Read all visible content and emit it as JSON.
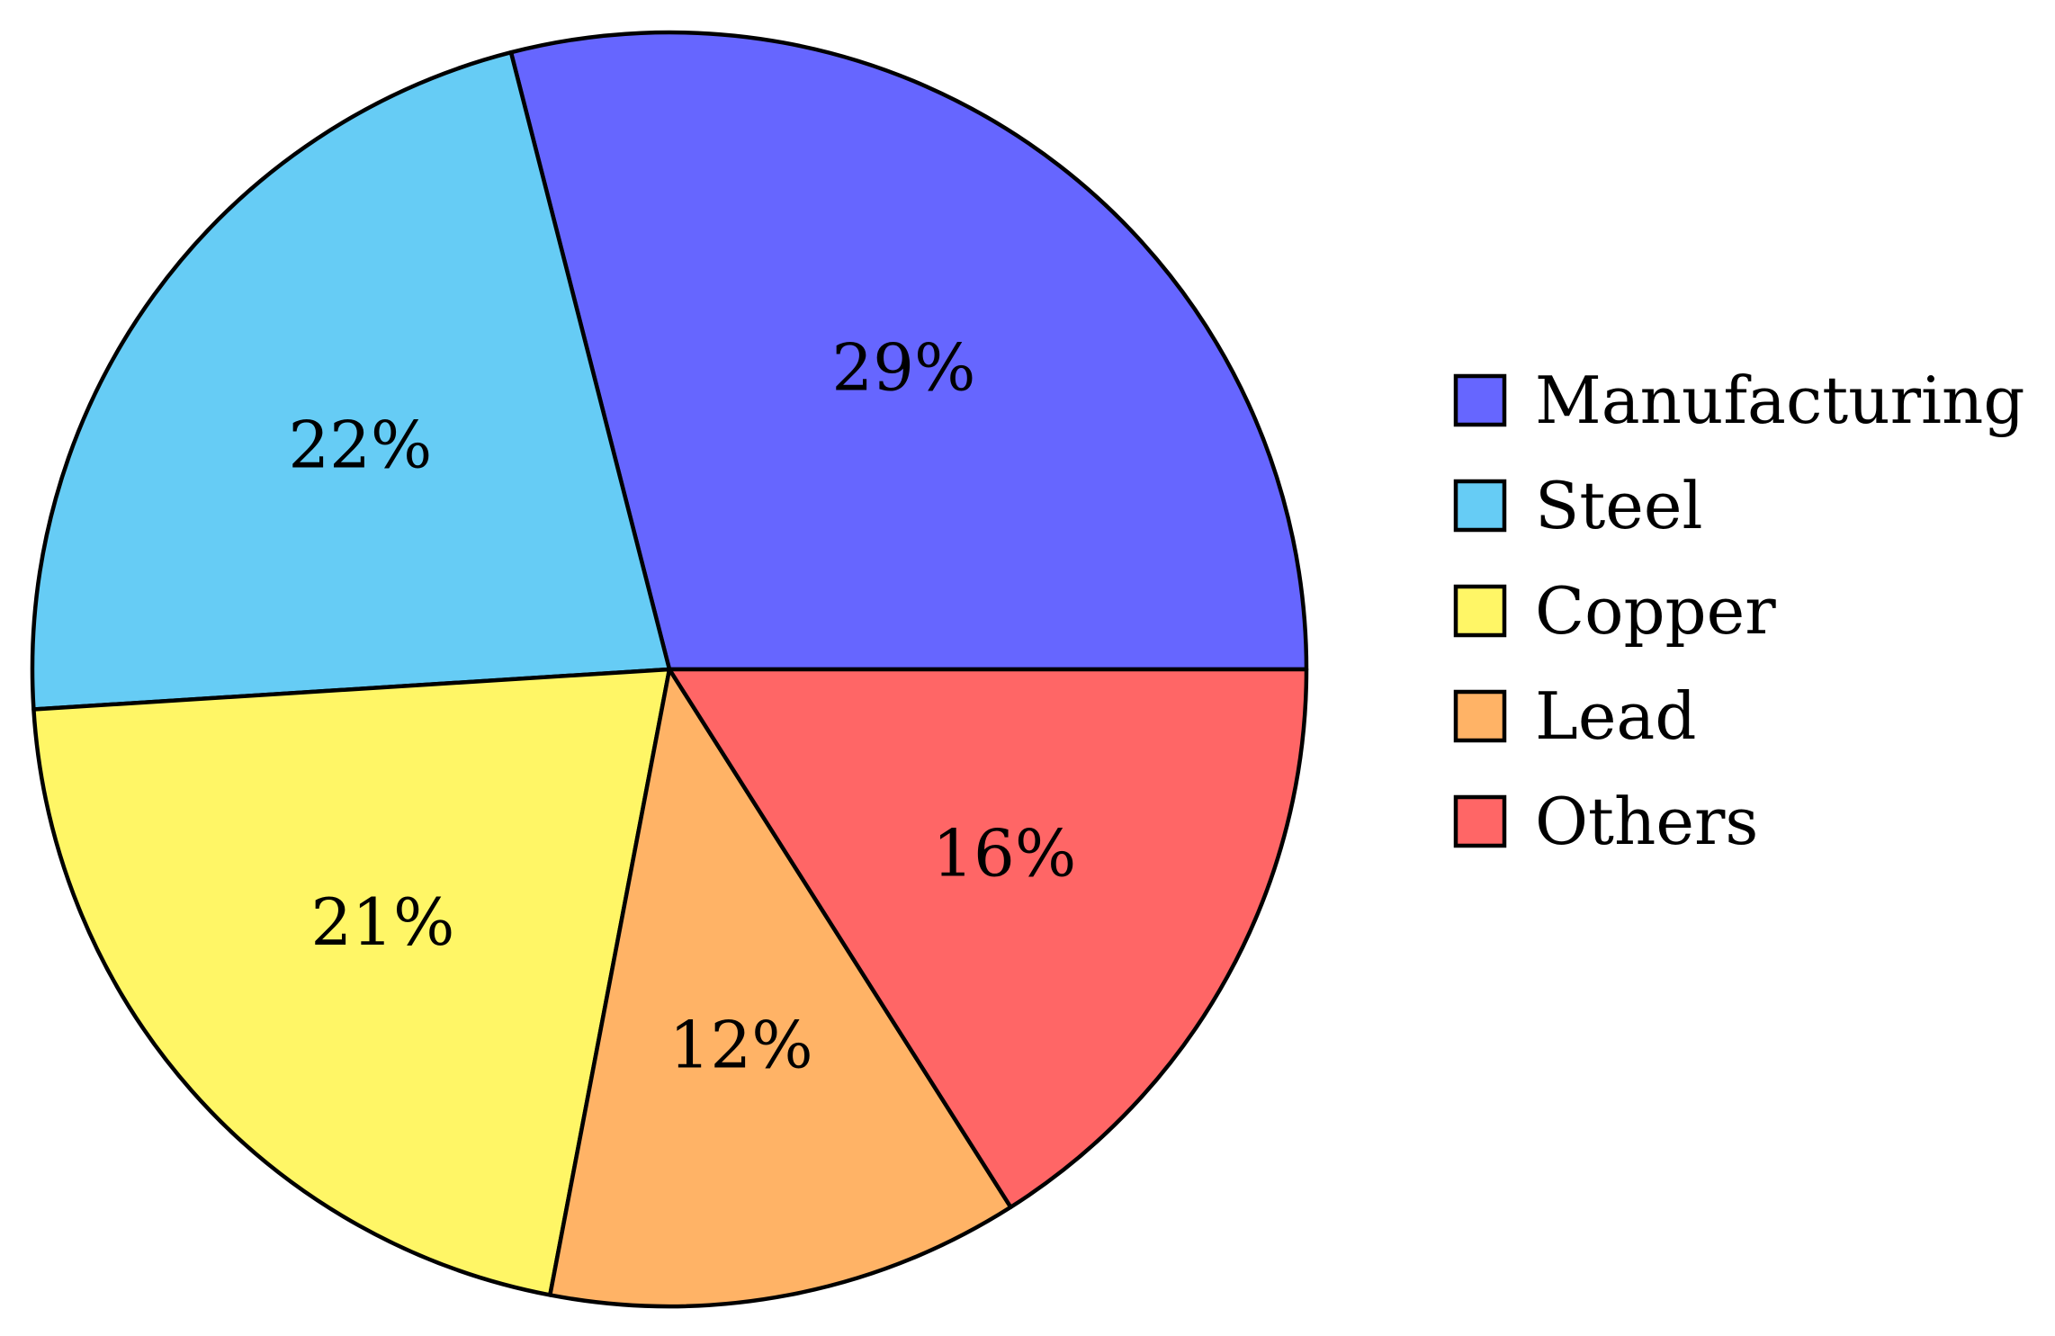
{
  "chart_data": {
    "type": "pie",
    "title": "",
    "start": "right, counter-clockwise",
    "categories": [
      "Manufacturing",
      "Steel",
      "Copper",
      "Lead",
      "Others"
    ],
    "values": [
      29,
      22,
      21,
      12,
      16
    ],
    "labels": [
      "29%",
      "22%",
      "21%",
      "12%",
      "16%"
    ],
    "colors": [
      "#6666ff",
      "#66ccf5",
      "#fff666",
      "#ffb366",
      "#ff6666"
    ],
    "edge_color": "#000000",
    "legend": {
      "position": "right",
      "entries": [
        "Manufacturing",
        "Steel",
        "Copper",
        "Lead",
        "Others"
      ]
    }
  }
}
